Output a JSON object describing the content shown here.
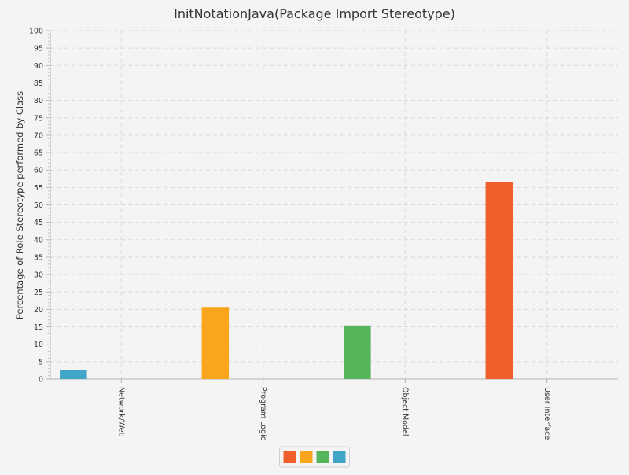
{
  "chart_data": {
    "type": "bar",
    "title": "InitNotationJava(Package Import Stereotype)",
    "ylabel": "Percentage of Role Stereotype performed by Class",
    "xlabel": "",
    "categories": [
      "Network/Web",
      "Program Logic",
      "Object Model",
      "User Interface"
    ],
    "series": [
      {
        "color": "#f05f2b",
        "values": [
          0,
          0,
          0,
          56.5
        ]
      },
      {
        "color": "#f9a61c",
        "values": [
          0,
          20.5,
          0,
          0
        ]
      },
      {
        "color": "#54b55b",
        "values": [
          0,
          0,
          15.4,
          0
        ]
      },
      {
        "color": "#41a5c6",
        "values": [
          2.6,
          0,
          0,
          0
        ]
      }
    ],
    "ylim": [
      0,
      100
    ],
    "y_major_step": 5,
    "y_minor_step": 1,
    "grid": true,
    "legend_placement": "bottom-center"
  }
}
